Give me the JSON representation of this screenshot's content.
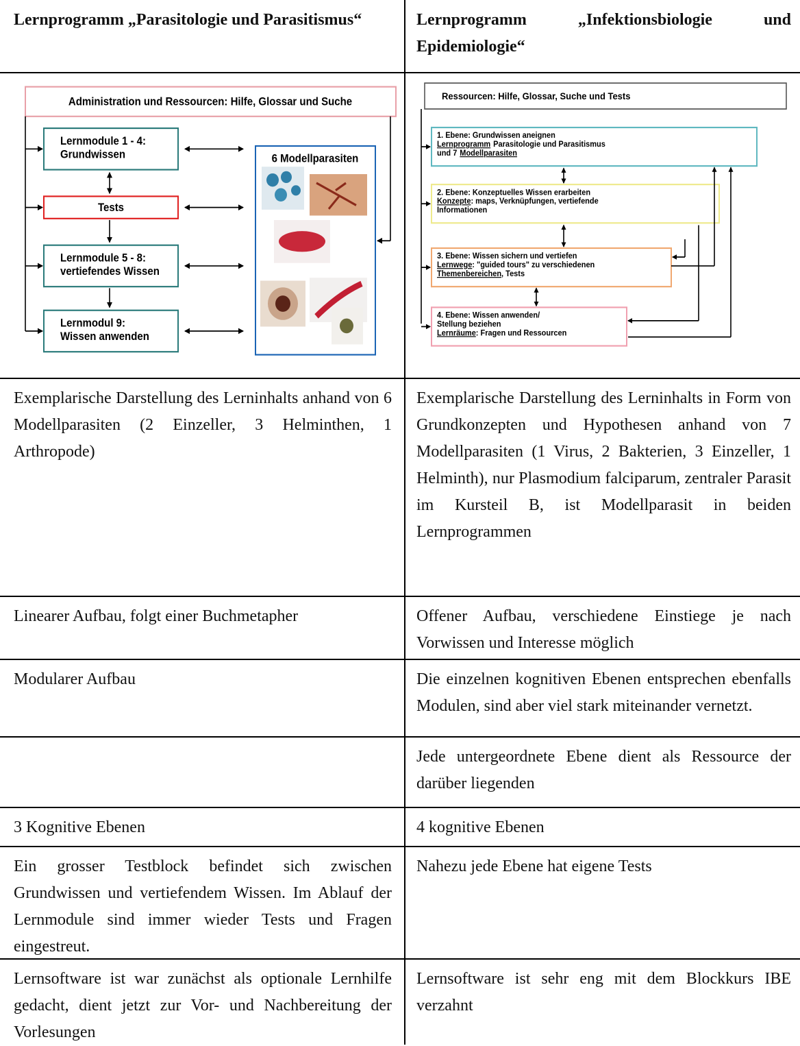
{
  "table": {
    "header": [
      "Lernprogramm „Parasitologie und Parasitismus“",
      "Lernprogramm „Infektionsbiologie und Epidemiologie“"
    ],
    "diagram_1": {
      "resources": "Administration und Ressourcen: Hilfe, Glossar und Suche",
      "modules": [
        [
          "Lernmodule 1 - 4:",
          "Grundwissen"
        ],
        [
          "Tests"
        ],
        [
          "Lernmodule 5 - 8:",
          "vertiefendes Wissen"
        ],
        [
          "Lernmodul 9:",
          "Wissen anwenden"
        ]
      ],
      "parasites": "6 Modellparasiten"
    },
    "diagram_2": {
      "resources": "Ressourcen: Hilfe, Glossar, Suche und Tests",
      "levels": [
        [
          "1. Ebene: Grundwissen aneignen",
          {
            "underlined": "Lernprogramm",
            "text": "Parasitologie und Parasitismus"
          },
          {
            "plain": "und 7",
            "underlined": "Modellparasiten"
          }
        ],
        [
          "2. Ebene: Konzeptuelles Wissen erarbeiten",
          {
            "underlined": "Konzepte",
            "text": ": maps, Verknüpfungen, vertiefende"
          },
          "Informationen"
        ],
        [
          "3. Ebene: Wissen sichern und vertiefen",
          {
            "underlined": "Lernwege",
            "text": ": \"guided tours\" zu verschiedenen"
          },
          {
            "underlined": "Themenbereichen",
            "text": ", Tests"
          }
        ],
        [
          "4. Ebene: Wissen anwenden/",
          "Stellung beziehen",
          {
            "underlined": "Lernräume",
            "text": ": Fragen und Ressourcen"
          }
        ]
      ]
    },
    "rows": [
      [
        "Exemplarische Darstellung des Lerninhalts anhand von 6 Modellparasiten (2 Einzeller, 3 Helminthen, 1 Arthropode)",
        "Exemplarische Darstellung des Lerninhalts in Form von Grundkonzepten und Hypothesen anhand von 7 Modellparasiten (1 Virus, 2 Bakterien, 3 Einzeller, 1 Helminth), nur Plasmodium falciparum, zentraler Parasit im Kursteil B, ist Modellparasit in beiden Lernprogrammen"
      ],
      [
        "Linearer Aufbau, folgt einer Buchmetapher",
        "Offener Aufbau, verschiedene Einstiege je nach Vorwissen und Interesse möglich"
      ],
      [
        "Modularer Aufbau",
        "Die einzelnen kognitiven Ebenen entsprechen ebenfalls Modulen, sind aber viel stark miteinander vernetzt."
      ],
      [
        null,
        "Jede untergeordnete Ebene dient als Ressource der darüber liegenden"
      ],
      [
        "3 Kognitive Ebenen",
        "4 kognitive Ebenen"
      ],
      [
        "Ein grosser Testblock befindet sich zwischen Grundwissen und vertiefendem Wissen. Im Ablauf der Lernmodule sind immer wieder Tests und Fragen eingestreut.",
        "Nahezu jede Ebene hat eigene Tests"
      ],
      [
        "Lernsoftware ist war zunächst als optionale Lernhilfe gedacht, dient jetzt zur Vor- und Nachbereitung der Vorlesungen",
        "Lernsoftware ist sehr eng mit dem Blockkurs IBE verzahnt"
      ]
    ]
  }
}
